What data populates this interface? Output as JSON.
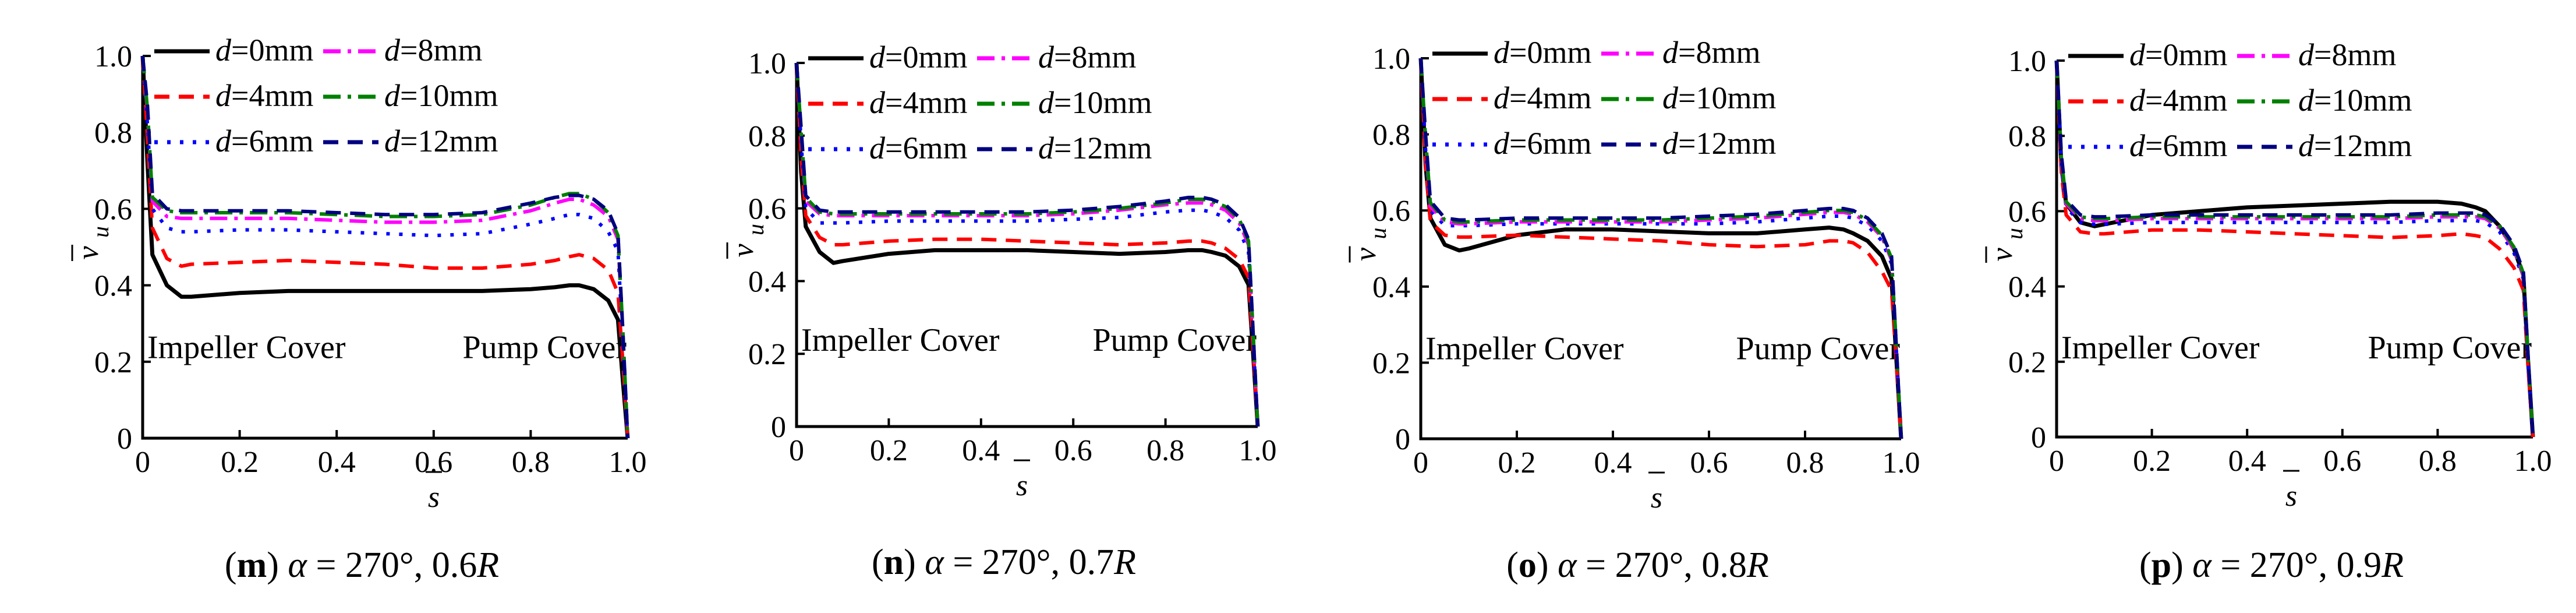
{
  "figure": {
    "legend_prefix": "d",
    "legend_suffix": "=",
    "colors": {
      "d0": "#000000",
      "d4": "#ff0000",
      "d6": "#0000ff",
      "d8": "#ff00ff",
      "d10": "#008000",
      "d12": "#000080"
    }
  },
  "chart_data": [
    {
      "type": "line",
      "caption": {
        "letter": "m",
        "alpha_symbol": "α",
        "text": " = 270°, 0.6",
        "radius": "R"
      },
      "xlabel": "s",
      "ylabel": "v",
      "ylabel_sub": "u",
      "xlim": [
        0,
        1.0
      ],
      "ylim": [
        0,
        1.0
      ],
      "xticks": [
        "0",
        "0.2",
        "0.4",
        "0.6",
        "0.8",
        "1.0"
      ],
      "yticks": [
        "0",
        "0.2",
        "0.4",
        "0.6",
        "0.8",
        "1.0"
      ],
      "region_labels": [
        "Impeller Cover",
        "Pump Cover"
      ],
      "x": [
        0,
        0.01,
        0.02,
        0.05,
        0.08,
        0.1,
        0.2,
        0.3,
        0.4,
        0.5,
        0.6,
        0.7,
        0.8,
        0.85,
        0.88,
        0.9,
        0.93,
        0.96,
        0.98,
        0.99,
        1.0
      ],
      "series": [
        {
          "name": "0mm",
          "style": "solid",
          "values": [
            1.0,
            0.72,
            0.48,
            0.4,
            0.37,
            0.37,
            0.38,
            0.385,
            0.385,
            0.385,
            0.385,
            0.385,
            0.39,
            0.395,
            0.4,
            0.4,
            0.39,
            0.36,
            0.31,
            0.15,
            0.0
          ]
        },
        {
          "name": "4mm",
          "style": "dash",
          "values": [
            1.0,
            0.78,
            0.55,
            0.47,
            0.45,
            0.455,
            0.46,
            0.465,
            0.46,
            0.455,
            0.445,
            0.445,
            0.455,
            0.465,
            0.475,
            0.48,
            0.47,
            0.44,
            0.38,
            0.2,
            0.0
          ]
        },
        {
          "name": "6mm",
          "style": "dot",
          "values": [
            1.0,
            0.82,
            0.6,
            0.55,
            0.54,
            0.54,
            0.545,
            0.545,
            0.54,
            0.535,
            0.53,
            0.535,
            0.56,
            0.575,
            0.585,
            0.585,
            0.575,
            0.54,
            0.49,
            0.25,
            0.0
          ]
        },
        {
          "name": "8mm",
          "style": "dashdot",
          "values": [
            1.0,
            0.85,
            0.62,
            0.58,
            0.575,
            0.575,
            0.575,
            0.575,
            0.57,
            0.565,
            0.565,
            0.57,
            0.595,
            0.615,
            0.625,
            0.625,
            0.61,
            0.58,
            0.52,
            0.27,
            0.0
          ]
        },
        {
          "name": "10mm",
          "style": "dashdot",
          "values": [
            1.0,
            0.86,
            0.63,
            0.595,
            0.59,
            0.59,
            0.59,
            0.59,
            0.585,
            0.58,
            0.58,
            0.585,
            0.61,
            0.63,
            0.64,
            0.64,
            0.625,
            0.59,
            0.53,
            0.28,
            0.0
          ]
        },
        {
          "name": "12mm",
          "style": "dash",
          "values": [
            1.0,
            0.87,
            0.64,
            0.6,
            0.595,
            0.595,
            0.595,
            0.595,
            0.59,
            0.585,
            0.585,
            0.59,
            0.615,
            0.63,
            0.635,
            0.635,
            0.625,
            0.595,
            0.535,
            0.28,
            0.0
          ]
        }
      ]
    },
    {
      "type": "line",
      "caption": {
        "letter": "n",
        "alpha_symbol": "α",
        "text": " = 270°, 0.7",
        "radius": "R"
      },
      "xlabel": "s",
      "ylabel": "v",
      "ylabel_sub": "u",
      "xlim": [
        0,
        1.0
      ],
      "ylim": [
        0,
        1.0
      ],
      "xticks": [
        "0",
        "0.2",
        "0.4",
        "0.6",
        "0.8",
        "1.0"
      ],
      "yticks": [
        "0",
        "0.2",
        "0.4",
        "0.6",
        "0.8",
        "1.0"
      ],
      "region_labels": [
        "Impeller Cover",
        "Pump Cover"
      ],
      "x": [
        0,
        0.01,
        0.02,
        0.05,
        0.08,
        0.1,
        0.2,
        0.3,
        0.4,
        0.5,
        0.6,
        0.7,
        0.8,
        0.85,
        0.88,
        0.9,
        0.93,
        0.96,
        0.98,
        0.99,
        1.0
      ],
      "series": [
        {
          "name": "0mm",
          "style": "solid",
          "values": [
            1.0,
            0.7,
            0.55,
            0.48,
            0.45,
            0.455,
            0.475,
            0.485,
            0.485,
            0.485,
            0.48,
            0.475,
            0.48,
            0.485,
            0.485,
            0.48,
            0.47,
            0.44,
            0.39,
            0.2,
            0.0
          ]
        },
        {
          "name": "4mm",
          "style": "dash",
          "values": [
            1.0,
            0.74,
            0.58,
            0.52,
            0.5,
            0.5,
            0.51,
            0.515,
            0.515,
            0.51,
            0.505,
            0.5,
            0.505,
            0.51,
            0.51,
            0.505,
            0.49,
            0.46,
            0.41,
            0.21,
            0.0
          ]
        },
        {
          "name": "6mm",
          "style": "dot",
          "values": [
            1.0,
            0.78,
            0.6,
            0.56,
            0.56,
            0.56,
            0.565,
            0.565,
            0.565,
            0.565,
            0.57,
            0.575,
            0.59,
            0.595,
            0.595,
            0.59,
            0.575,
            0.54,
            0.48,
            0.24,
            0.0
          ]
        },
        {
          "name": "8mm",
          "style": "dashdot",
          "values": [
            1.0,
            0.8,
            0.62,
            0.585,
            0.58,
            0.58,
            0.58,
            0.58,
            0.58,
            0.58,
            0.585,
            0.595,
            0.61,
            0.615,
            0.615,
            0.61,
            0.595,
            0.56,
            0.5,
            0.25,
            0.0
          ]
        },
        {
          "name": "10mm",
          "style": "dashdot",
          "values": [
            1.0,
            0.81,
            0.63,
            0.59,
            0.585,
            0.585,
            0.585,
            0.585,
            0.585,
            0.585,
            0.59,
            0.6,
            0.615,
            0.625,
            0.625,
            0.62,
            0.605,
            0.57,
            0.51,
            0.26,
            0.0
          ]
        },
        {
          "name": "12mm",
          "style": "dash",
          "values": [
            1.0,
            0.82,
            0.635,
            0.595,
            0.59,
            0.59,
            0.59,
            0.59,
            0.59,
            0.59,
            0.595,
            0.605,
            0.62,
            0.63,
            0.63,
            0.625,
            0.61,
            0.575,
            0.515,
            0.26,
            0.0
          ]
        }
      ]
    },
    {
      "type": "line",
      "caption": {
        "letter": "o",
        "alpha_symbol": "α",
        "text": " = 270°, 0.8",
        "radius": "R"
      },
      "xlabel": "s",
      "ylabel": "v",
      "ylabel_sub": "u",
      "xlim": [
        0,
        1.0
      ],
      "ylim": [
        0,
        1.0
      ],
      "xticks": [
        "0",
        "0.2",
        "0.4",
        "0.6",
        "0.8",
        "1.0"
      ],
      "yticks": [
        "0",
        "0.2",
        "0.4",
        "0.6",
        "0.8",
        "1.0"
      ],
      "region_labels": [
        "Impeller Cover",
        "Pump Cover"
      ],
      "x": [
        0,
        0.01,
        0.02,
        0.05,
        0.08,
        0.1,
        0.2,
        0.3,
        0.4,
        0.5,
        0.6,
        0.7,
        0.8,
        0.85,
        0.88,
        0.9,
        0.93,
        0.96,
        0.98,
        0.99,
        1.0
      ],
      "series": [
        {
          "name": "0mm",
          "style": "solid",
          "values": [
            1.0,
            0.72,
            0.58,
            0.51,
            0.495,
            0.5,
            0.535,
            0.55,
            0.55,
            0.545,
            0.54,
            0.54,
            0.55,
            0.555,
            0.55,
            0.54,
            0.52,
            0.48,
            0.42,
            0.21,
            0.0
          ]
        },
        {
          "name": "4mm",
          "style": "dash",
          "values": [
            1.0,
            0.72,
            0.57,
            0.535,
            0.53,
            0.53,
            0.535,
            0.53,
            0.525,
            0.52,
            0.51,
            0.505,
            0.51,
            0.52,
            0.52,
            0.515,
            0.49,
            0.44,
            0.39,
            0.2,
            0.0
          ]
        },
        {
          "name": "6mm",
          "style": "dot",
          "values": [
            1.0,
            0.76,
            0.6,
            0.56,
            0.56,
            0.56,
            0.565,
            0.565,
            0.565,
            0.565,
            0.565,
            0.57,
            0.58,
            0.585,
            0.585,
            0.58,
            0.56,
            0.52,
            0.46,
            0.23,
            0.0
          ]
        },
        {
          "name": "8mm",
          "style": "dashdot",
          "values": [
            1.0,
            0.78,
            0.61,
            0.57,
            0.565,
            0.565,
            0.57,
            0.57,
            0.57,
            0.57,
            0.575,
            0.58,
            0.59,
            0.595,
            0.595,
            0.59,
            0.57,
            0.53,
            0.47,
            0.24,
            0.0
          ]
        },
        {
          "name": "10mm",
          "style": "dashdot",
          "values": [
            1.0,
            0.79,
            0.62,
            0.575,
            0.57,
            0.57,
            0.575,
            0.575,
            0.575,
            0.575,
            0.58,
            0.585,
            0.595,
            0.6,
            0.6,
            0.595,
            0.575,
            0.535,
            0.475,
            0.24,
            0.0
          ]
        },
        {
          "name": "12mm",
          "style": "dash",
          "values": [
            1.0,
            0.8,
            0.625,
            0.58,
            0.575,
            0.575,
            0.58,
            0.58,
            0.58,
            0.58,
            0.585,
            0.59,
            0.6,
            0.605,
            0.605,
            0.6,
            0.58,
            0.54,
            0.48,
            0.24,
            0.0
          ]
        }
      ]
    },
    {
      "type": "line",
      "caption": {
        "letter": "p",
        "alpha_symbol": "α",
        "text": " = 270°, 0.9",
        "radius": "R"
      },
      "xlabel": "s",
      "ylabel": "v",
      "ylabel_sub": "u",
      "xlim": [
        0,
        1.0
      ],
      "ylim": [
        0,
        1.0
      ],
      "xticks": [
        "0",
        "0.2",
        "0.4",
        "0.6",
        "0.8",
        "1.0"
      ],
      "yticks": [
        "0",
        "0.2",
        "0.4",
        "0.6",
        "0.8",
        "1.0"
      ],
      "region_labels": [
        "Impeller Cover",
        "Pump Cover"
      ],
      "x": [
        0,
        0.01,
        0.02,
        0.05,
        0.08,
        0.1,
        0.2,
        0.3,
        0.4,
        0.5,
        0.6,
        0.7,
        0.8,
        0.85,
        0.88,
        0.9,
        0.93,
        0.96,
        0.98,
        0.99,
        1.0
      ],
      "series": [
        {
          "name": "0mm",
          "style": "solid",
          "values": [
            1.0,
            0.72,
            0.62,
            0.57,
            0.56,
            0.565,
            0.59,
            0.6,
            0.61,
            0.615,
            0.62,
            0.625,
            0.625,
            0.62,
            0.61,
            0.6,
            0.56,
            0.5,
            0.43,
            0.2,
            0.0
          ]
        },
        {
          "name": "4mm",
          "style": "dash",
          "values": [
            1.0,
            0.7,
            0.59,
            0.545,
            0.54,
            0.54,
            0.55,
            0.55,
            0.545,
            0.54,
            0.535,
            0.53,
            0.535,
            0.54,
            0.535,
            0.53,
            0.5,
            0.45,
            0.39,
            0.18,
            0.0
          ]
        },
        {
          "name": "6mm",
          "style": "dot",
          "values": [
            1.0,
            0.72,
            0.61,
            0.57,
            0.565,
            0.565,
            0.57,
            0.57,
            0.57,
            0.57,
            0.57,
            0.57,
            0.575,
            0.575,
            0.575,
            0.57,
            0.545,
            0.49,
            0.42,
            0.2,
            0.0
          ]
        },
        {
          "name": "8mm",
          "style": "dashdot",
          "values": [
            1.0,
            0.73,
            0.62,
            0.58,
            0.575,
            0.575,
            0.58,
            0.58,
            0.58,
            0.58,
            0.58,
            0.58,
            0.585,
            0.585,
            0.585,
            0.58,
            0.555,
            0.5,
            0.43,
            0.2,
            0.0
          ]
        },
        {
          "name": "10mm",
          "style": "dashdot",
          "values": [
            1.0,
            0.74,
            0.625,
            0.585,
            0.58,
            0.58,
            0.585,
            0.585,
            0.585,
            0.585,
            0.585,
            0.585,
            0.59,
            0.59,
            0.59,
            0.585,
            0.56,
            0.505,
            0.435,
            0.21,
            0.0
          ]
        },
        {
          "name": "12mm",
          "style": "dash",
          "values": [
            1.0,
            0.75,
            0.63,
            0.59,
            0.585,
            0.585,
            0.59,
            0.59,
            0.59,
            0.59,
            0.59,
            0.59,
            0.595,
            0.595,
            0.595,
            0.59,
            0.565,
            0.51,
            0.44,
            0.21,
            0.0
          ]
        }
      ]
    }
  ]
}
